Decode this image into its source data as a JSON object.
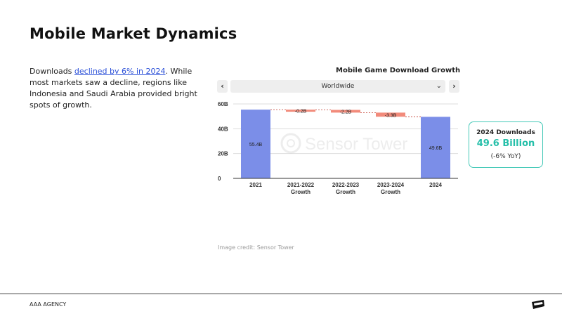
{
  "slide": {
    "title": "Mobile Market Dynamics",
    "body_pre": "Downloads ",
    "body_link": "declined by 6% in 2024",
    "body_post": ". While most markets saw a decline, regions like Indonesia and Saudi Arabia provided bright spots of growth."
  },
  "chart_header": {
    "title": "Mobile Game Download Growth",
    "prev_label": "‹",
    "next_label": "›",
    "region": "Worldwide",
    "dropdown_icon": "chevron-down-icon"
  },
  "chart_data": {
    "type": "bar",
    "subtype": "waterfall",
    "title": "Mobile Game Download Growth",
    "categories": [
      "2021",
      "2021-2022 Growth",
      "2022-2023 Growth",
      "2023-2024 Growth",
      "2024"
    ],
    "values": [
      55.4,
      -0.2,
      -2.2,
      -3.3,
      49.6
    ],
    "data_labels": [
      "55.4B",
      "-0.2B",
      "-2.2B",
      "-3.3B",
      "49.6B"
    ],
    "kinds": [
      "total",
      "delta",
      "delta",
      "delta",
      "total"
    ],
    "yticks": [
      "60B",
      "40B",
      "20B",
      "0"
    ],
    "ylim": [
      0,
      60
    ],
    "grid": true,
    "watermark": "Sensor Tower",
    "colors": {
      "total": "#7b8ee8",
      "decrease": "#f28b7b",
      "connector": "#c0392b",
      "grid": "#dddddd"
    }
  },
  "callout": {
    "label": "2024 Downloads",
    "value": "49.6 Billion",
    "yoy": "(-6% YoY)",
    "accent": "#25bfa9"
  },
  "credit": "Image credit: Sensor Tower",
  "footer": {
    "agency": "AAA AGENCY",
    "logo_icon": "agency-logo-icon"
  }
}
